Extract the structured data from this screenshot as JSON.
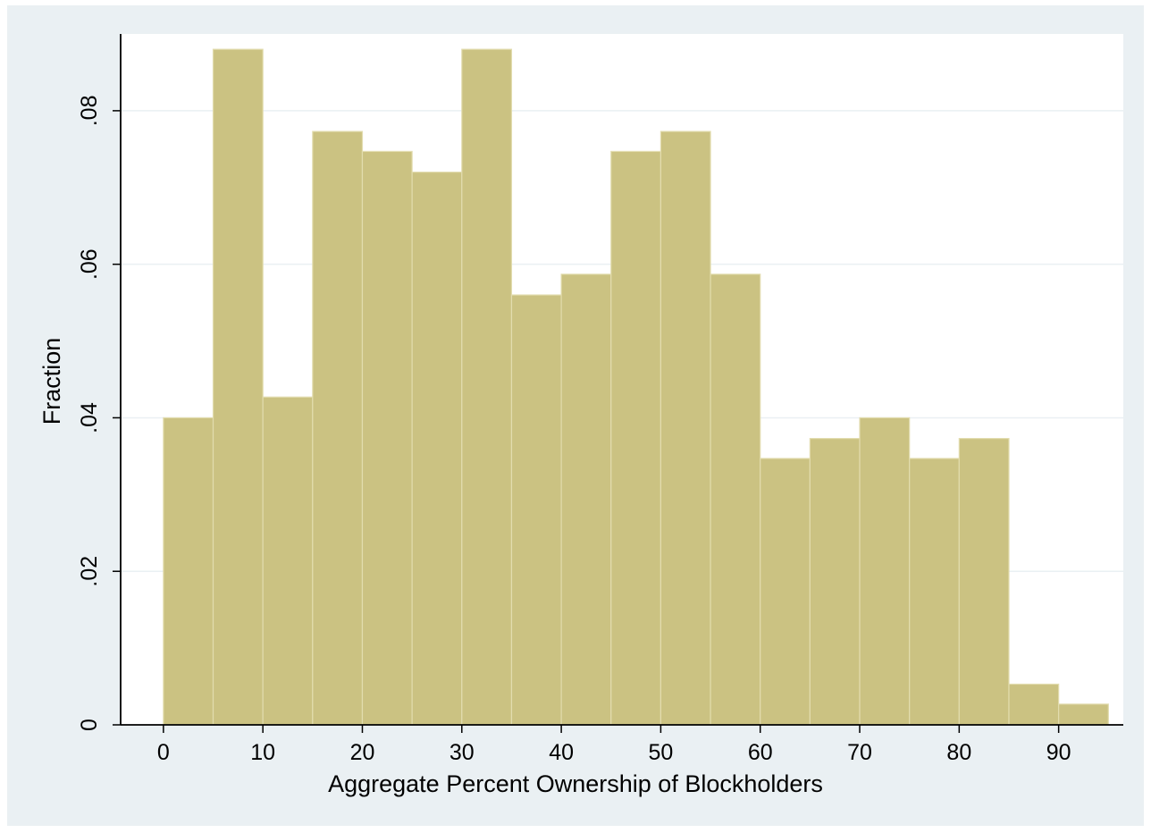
{
  "chart_data": {
    "type": "bar",
    "title": "",
    "xlabel": "Aggregate Percent Ownership of Blockholders",
    "ylabel": "Fraction",
    "bin_width": 5,
    "bins": [
      {
        "start": 0,
        "end": 5,
        "value": 0.04
      },
      {
        "start": 5,
        "end": 10,
        "value": 0.088
      },
      {
        "start": 10,
        "end": 15,
        "value": 0.0427
      },
      {
        "start": 15,
        "end": 20,
        "value": 0.0773
      },
      {
        "start": 20,
        "end": 25,
        "value": 0.0747
      },
      {
        "start": 25,
        "end": 30,
        "value": 0.072
      },
      {
        "start": 30,
        "end": 35,
        "value": 0.088
      },
      {
        "start": 35,
        "end": 40,
        "value": 0.056
      },
      {
        "start": 40,
        "end": 45,
        "value": 0.0587
      },
      {
        "start": 45,
        "end": 50,
        "value": 0.0747
      },
      {
        "start": 50,
        "end": 55,
        "value": 0.0773
      },
      {
        "start": 55,
        "end": 60,
        "value": 0.0587
      },
      {
        "start": 60,
        "end": 65,
        "value": 0.0347
      },
      {
        "start": 65,
        "end": 70,
        "value": 0.0373
      },
      {
        "start": 70,
        "end": 75,
        "value": 0.04
      },
      {
        "start": 75,
        "end": 80,
        "value": 0.0347
      },
      {
        "start": 80,
        "end": 85,
        "value": 0.0373
      },
      {
        "start": 85,
        "end": 90,
        "value": 0.0053
      },
      {
        "start": 90,
        "end": 95,
        "value": 0.0027
      }
    ],
    "xlim": [
      -4.3,
      96.5
    ],
    "ylim": [
      0,
      0.09
    ],
    "x_ticks": [
      0,
      10,
      20,
      30,
      40,
      50,
      60,
      70,
      80,
      90
    ],
    "x_tick_labels": [
      "0",
      "10",
      "20",
      "30",
      "40",
      "50",
      "60",
      "70",
      "80",
      "90"
    ],
    "y_ticks": [
      0,
      0.02,
      0.04,
      0.06,
      0.08
    ],
    "y_tick_labels": [
      "0",
      ".02",
      ".04",
      ".06",
      ".08"
    ],
    "grid": true,
    "colors": {
      "frame_background": "#eaf0f3",
      "plot_background": "#ffffff",
      "bar_fill": "#cbc282",
      "bar_edge": "#e2dcae",
      "grid": "#eaf0f3",
      "axis": "#000000"
    }
  }
}
